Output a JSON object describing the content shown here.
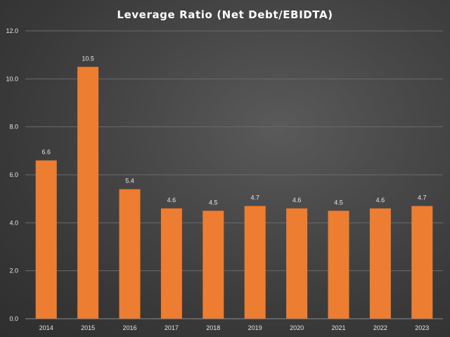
{
  "chart_data": {
    "type": "bar",
    "title": "Leverage Ratio (Net Debt/EBIDTA)",
    "xlabel": "",
    "ylabel": "",
    "categories": [
      "2014",
      "2015",
      "2016",
      "2017",
      "2018",
      "2019",
      "2020",
      "2021",
      "2022",
      "2023"
    ],
    "values": [
      6.6,
      10.5,
      5.4,
      4.6,
      4.5,
      4.7,
      4.6,
      4.5,
      4.6,
      4.7
    ],
    "data_labels": [
      "6.6",
      "10.5",
      "5.4",
      "4.6",
      "4.5",
      "4.7",
      "4.6",
      "4.5",
      "4.6",
      "4.7"
    ],
    "ylim": [
      0,
      12
    ],
    "yticks": [
      0,
      2,
      4,
      6,
      8,
      10,
      12
    ],
    "ytick_labels": [
      "0.0",
      "2.0",
      "4.0",
      "6.0",
      "8.0",
      "10.0",
      "12.0"
    ],
    "grid": true,
    "legend": "none",
    "bar_color": "#ED7D31",
    "background_color": "#404040"
  }
}
